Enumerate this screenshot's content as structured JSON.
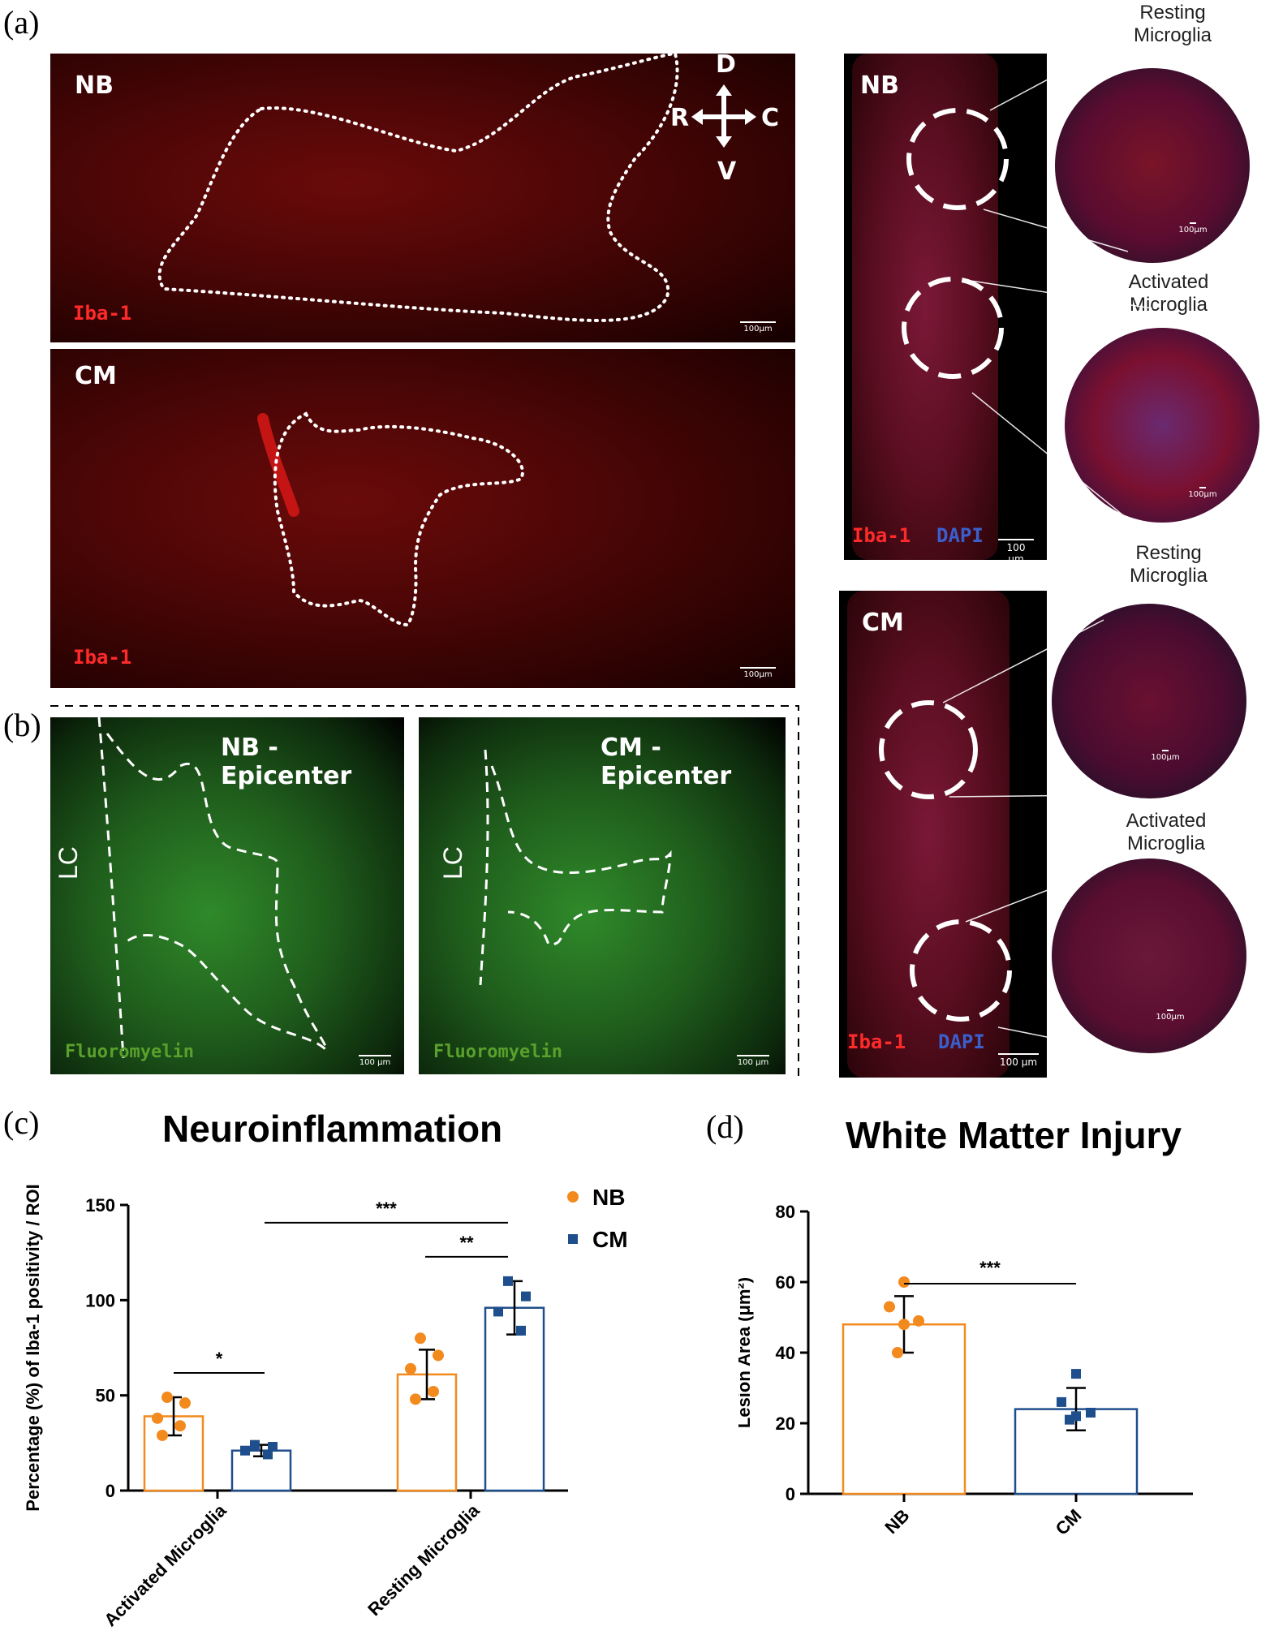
{
  "panel_labels": {
    "a": "(a)",
    "b": "(b)",
    "c": "(c)",
    "d": "(d)"
  },
  "panel_a": {
    "top_group": "NB",
    "bottom_group": "CM",
    "stain": "Iba-1",
    "scalebar": "100μm",
    "compass": {
      "up": "D",
      "down": "V",
      "left": "R",
      "right": "C"
    }
  },
  "right_panels": {
    "nb": {
      "group": "NB",
      "stain1": "Iba-1",
      "stain2": "DAPI",
      "scalebar": "100 μm",
      "zoom_scale": "100μm",
      "callout_top": [
        "Resting",
        "Microglia"
      ],
      "callout_bottom": [
        "Activated",
        "Microglia"
      ]
    },
    "cm": {
      "group": "CM",
      "stain1": "Iba-1",
      "stain2": "DAPI",
      "scalebar": "100 μm",
      "zoom_scale": "100μm",
      "callout_top": [
        "Resting",
        "Microglia"
      ],
      "callout_bottom": [
        "Activated",
        "Microglia"
      ]
    }
  },
  "panel_b": {
    "left_title": "NB - Epicenter",
    "right_title": "CM - Epicenter",
    "side_label": "LC",
    "stain": "Fluoromyelin",
    "scalebar": "100 μm"
  },
  "colors": {
    "nb": "#f28a1e",
    "cm": "#1f4e8c",
    "iba": "#e02020",
    "dapi": "#3a5fcd",
    "myelin": "#5aa02c"
  },
  "chart_data": [
    {
      "type": "bar",
      "title": "Neuroinflammation",
      "ylabel": "Percentage (%) of Iba-1 positivity / ROI",
      "categories": [
        "Activated Microglia",
        "Resting Microglia"
      ],
      "ylim": [
        0,
        150
      ],
      "yticks": [
        0,
        50,
        100,
        150
      ],
      "legend": [
        "NB",
        "CM"
      ],
      "series": [
        {
          "name": "NB",
          "values": [
            39,
            61
          ],
          "errors": [
            10,
            13
          ],
          "points": [
            [
              49,
              46,
              38,
              34,
              29
            ],
            [
              80,
              71,
              64,
              52,
              48
            ]
          ]
        },
        {
          "name": "CM",
          "values": [
            21,
            96
          ],
          "errors": [
            3,
            14
          ],
          "points": [
            [
              24,
              23,
              21,
              19
            ],
            [
              110,
              102,
              94,
              84
            ]
          ]
        }
      ],
      "significance": [
        {
          "label": "*",
          "between": "Activated NB vs CM"
        },
        {
          "label": "**",
          "between": "Resting NB vs CM"
        },
        {
          "label": "***",
          "between": "Activated CM vs Resting CM"
        }
      ]
    },
    {
      "type": "bar",
      "title": "White Matter Injury",
      "ylabel": "Lesion Area (μm²)",
      "categories": [
        "NB",
        "CM"
      ],
      "ylim": [
        0,
        80
      ],
      "yticks": [
        0,
        20,
        40,
        60,
        80
      ],
      "values": [
        48,
        24
      ],
      "errors": [
        8,
        6
      ],
      "points": [
        [
          60,
          53,
          49,
          48,
          40
        ],
        [
          34,
          26,
          23,
          22,
          21
        ]
      ],
      "significance": [
        {
          "label": "***",
          "between": "NB vs CM"
        }
      ]
    }
  ]
}
